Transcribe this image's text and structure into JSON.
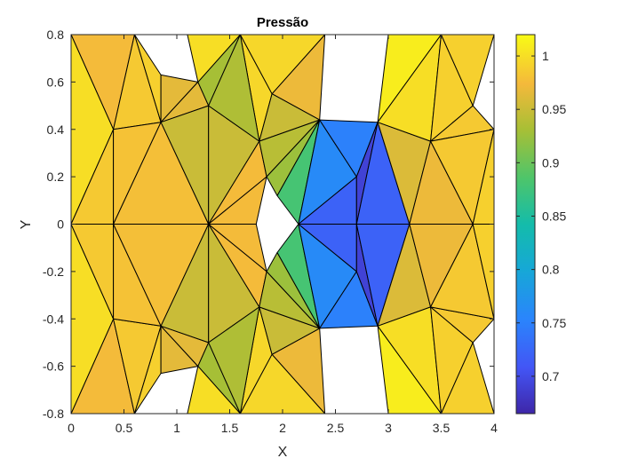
{
  "chart_data": {
    "type": "heatmap",
    "title": "Pressão",
    "xlabel": "X",
    "ylabel": "Y",
    "xlim": [
      0,
      4
    ],
    "ylim": [
      -0.8,
      0.8
    ],
    "x_ticks": [
      "0",
      "0.5",
      "1",
      "1.5",
      "2",
      "2.5",
      "3",
      "3.5",
      "4"
    ],
    "y_ticks": [
      "0.8",
      "0.6",
      "0.4",
      "0.2",
      "0",
      "-0.2",
      "-0.4",
      "-0.6",
      "-0.8"
    ],
    "colorbar": {
      "limits": [
        0.665,
        1.02
      ],
      "ticks": [
        "1",
        "0.95",
        "0.9",
        "0.85",
        "0.8",
        "0.75",
        "0.7"
      ],
      "colormap": "parula"
    },
    "grid": false,
    "nodes": [
      [
        0,
        0.8
      ],
      [
        0.6,
        0.8
      ],
      [
        1.1,
        0.8
      ],
      [
        1.6,
        0.8
      ],
      [
        2.4,
        0.8
      ],
      [
        3.0,
        0.8
      ],
      [
        3.5,
        0.8
      ],
      [
        4.0,
        0.8
      ],
      [
        0.4,
        0.4
      ],
      [
        0.85,
        0.43
      ],
      [
        1.3,
        0.5
      ],
      [
        1.78,
        0.35
      ],
      [
        2.35,
        0.44
      ],
      [
        2.9,
        0.43
      ],
      [
        3.4,
        0.35
      ],
      [
        4.0,
        0.4
      ],
      [
        0,
        0
      ],
      [
        0.4,
        0
      ],
      [
        1.3,
        0
      ],
      [
        1.95,
        0.12
      ],
      [
        1.75,
        0
      ],
      [
        2.15,
        0
      ],
      [
        2.7,
        0.2
      ],
      [
        2.7,
        0
      ],
      [
        3.2,
        0
      ],
      [
        3.8,
        0
      ],
      [
        4.0,
        0
      ],
      [
        0.4,
        -0.4
      ],
      [
        0.85,
        -0.43
      ],
      [
        1.3,
        -0.5
      ],
      [
        1.78,
        -0.35
      ],
      [
        2.35,
        -0.44
      ],
      [
        2.9,
        -0.43
      ],
      [
        3.4,
        -0.35
      ],
      [
        4.0,
        -0.4
      ],
      [
        0,
        -0.8
      ],
      [
        0.6,
        -0.8
      ],
      [
        1.1,
        -0.8
      ],
      [
        1.6,
        -0.8
      ],
      [
        2.4,
        -0.8
      ],
      [
        3.0,
        -0.8
      ],
      [
        3.5,
        -0.8
      ],
      [
        4.0,
        -0.8
      ],
      [
        1.95,
        -0.12
      ],
      [
        2.7,
        -0.2
      ],
      [
        1.9,
        0.55
      ],
      [
        1.9,
        -0.55
      ],
      [
        1.85,
        0.2
      ],
      [
        1.85,
        -0.2
      ],
      [
        3.8,
        0.5
      ],
      [
        3.8,
        -0.5
      ],
      [
        0.85,
        0.63
      ],
      [
        0.85,
        -0.63
      ],
      [
        1.2,
        0.6
      ],
      [
        1.2,
        -0.6
      ]
    ],
    "triangles": [
      {
        "v": [
          0,
          1,
          8
        ],
        "p": 0.975
      },
      {
        "v": [
          1,
          9,
          8
        ],
        "p": 0.985
      },
      {
        "v": [
          1,
          51,
          9
        ],
        "p": 0.99
      },
      {
        "v": [
          51,
          53,
          9
        ],
        "p": 0.965
      },
      {
        "v": [
          53,
          10,
          9
        ],
        "p": 0.965
      },
      {
        "v": [
          3,
          10,
          53
        ],
        "p": 0.93
      },
      {
        "v": [
          0,
          8,
          16
        ],
        "p": 1.0
      },
      {
        "v": [
          8,
          17,
          16
        ],
        "p": 0.985
      },
      {
        "v": [
          8,
          9,
          17
        ],
        "p": 0.98
      },
      {
        "v": [
          9,
          18,
          17
        ],
        "p": 0.978
      },
      {
        "v": [
          9,
          10,
          18
        ],
        "p": 0.95
      },
      {
        "v": [
          10,
          11,
          18
        ],
        "p": 0.95
      },
      {
        "v": [
          3,
          45,
          11
        ],
        "p": 0.995
      },
      {
        "v": [
          3,
          10,
          11
        ],
        "p": 0.935
      },
      {
        "v": [
          11,
          47,
          18
        ],
        "p": 0.975
      },
      {
        "v": [
          45,
          4,
          12
        ],
        "p": 0.97
      },
      {
        "v": [
          45,
          12,
          11
        ],
        "p": 0.95
      },
      {
        "v": [
          11,
          12,
          47
        ],
        "p": 0.94
      },
      {
        "v": [
          47,
          12,
          19
        ],
        "p": 0.925
      },
      {
        "v": [
          12,
          21,
          19
        ],
        "p": 0.88
      },
      {
        "v": [
          12,
          22,
          21
        ],
        "p": 0.76
      },
      {
        "v": [
          21,
          22,
          23
        ],
        "p": 0.72
      },
      {
        "v": [
          12,
          13,
          22
        ],
        "p": 0.75
      },
      {
        "v": [
          13,
          23,
          22
        ],
        "p": 0.69
      },
      {
        "v": [
          13,
          24,
          23
        ],
        "p": 0.72
      },
      {
        "v": [
          13,
          14,
          24
        ],
        "p": 0.96
      },
      {
        "v": [
          5,
          6,
          13
        ],
        "p": 1.01
      },
      {
        "v": [
          6,
          14,
          13
        ],
        "p": 1.0
      },
      {
        "v": [
          6,
          49,
          14
        ],
        "p": 0.99
      },
      {
        "v": [
          6,
          7,
          49
        ],
        "p": 0.99
      },
      {
        "v": [
          49,
          15,
          14
        ],
        "p": 0.985
      },
      {
        "v": [
          14,
          25,
          24
        ],
        "p": 0.97
      },
      {
        "v": [
          14,
          15,
          25
        ],
        "p": 0.985
      },
      {
        "v": [
          15,
          26,
          25
        ],
        "p": 0.99
      },
      {
        "v": [
          35,
          27,
          36
        ],
        "p": 0.975
      },
      {
        "v": [
          36,
          27,
          28
        ],
        "p": 0.985
      },
      {
        "v": [
          36,
          28,
          52
        ],
        "p": 0.99
      },
      {
        "v": [
          52,
          28,
          54
        ],
        "p": 0.965
      },
      {
        "v": [
          54,
          28,
          29
        ],
        "p": 0.965
      },
      {
        "v": [
          38,
          54,
          29
        ],
        "p": 0.93
      },
      {
        "v": [
          35,
          16,
          27
        ],
        "p": 1.0
      },
      {
        "v": [
          27,
          16,
          17
        ],
        "p": 0.985
      },
      {
        "v": [
          27,
          17,
          28
        ],
        "p": 0.98
      },
      {
        "v": [
          28,
          17,
          18
        ],
        "p": 0.978
      },
      {
        "v": [
          28,
          18,
          29
        ],
        "p": 0.95
      },
      {
        "v": [
          29,
          18,
          30
        ],
        "p": 0.95
      },
      {
        "v": [
          38,
          30,
          46
        ],
        "p": 0.995
      },
      {
        "v": [
          38,
          30,
          29
        ],
        "p": 0.935
      },
      {
        "v": [
          30,
          18,
          48
        ],
        "p": 0.975
      },
      {
        "v": [
          46,
          31,
          39
        ],
        "p": 0.97
      },
      {
        "v": [
          46,
          30,
          31
        ],
        "p": 0.95
      },
      {
        "v": [
          30,
          48,
          31
        ],
        "p": 0.94
      },
      {
        "v": [
          48,
          43,
          31
        ],
        "p": 0.925
      },
      {
        "v": [
          31,
          43,
          21
        ],
        "p": 0.88
      },
      {
        "v": [
          31,
          21,
          44
        ],
        "p": 0.76
      },
      {
        "v": [
          21,
          23,
          44
        ],
        "p": 0.72
      },
      {
        "v": [
          31,
          44,
          32
        ],
        "p": 0.75
      },
      {
        "v": [
          32,
          44,
          23
        ],
        "p": 0.69
      },
      {
        "v": [
          32,
          23,
          24
        ],
        "p": 0.72
      },
      {
        "v": [
          32,
          24,
          33
        ],
        "p": 0.96
      },
      {
        "v": [
          40,
          32,
          41
        ],
        "p": 1.01
      },
      {
        "v": [
          41,
          32,
          33
        ],
        "p": 1.0
      },
      {
        "v": [
          41,
          33,
          50
        ],
        "p": 0.99
      },
      {
        "v": [
          41,
          50,
          42
        ],
        "p": 0.99
      },
      {
        "v": [
          50,
          33,
          34
        ],
        "p": 0.985
      },
      {
        "v": [
          33,
          24,
          25
        ],
        "p": 0.97
      },
      {
        "v": [
          33,
          25,
          34
        ],
        "p": 0.985
      },
      {
        "v": [
          34,
          25,
          26
        ],
        "p": 0.99
      },
      {
        "v": [
          2,
          3,
          53
        ],
        "p": 1.0
      },
      {
        "v": [
          38,
          37,
          54
        ],
        "p": 1.0
      },
      {
        "v": [
          3,
          4,
          45
        ],
        "p": 0.995
      },
      {
        "v": [
          38,
          46,
          39
        ],
        "p": 0.995
      },
      {
        "v": [
          18,
          47,
          20
        ],
        "p": 0.975
      },
      {
        "v": [
          18,
          20,
          48
        ],
        "p": 0.975
      }
    ]
  }
}
